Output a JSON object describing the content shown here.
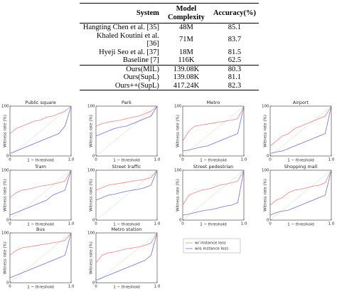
{
  "table": {
    "header": [
      "System",
      "Model Complexity",
      "Accuracy(%)"
    ],
    "groups": [
      [
        [
          "Hangting Chen et al. [35]",
          "48M",
          "85.1"
        ],
        [
          "Khaled Koutini et al. [36]",
          "71M",
          "83.7"
        ],
        [
          "Hyeji Seo et al. [37]",
          "18M",
          "81.5"
        ],
        [
          "Baseline [7]",
          "116K",
          "62.5"
        ]
      ],
      [
        [
          "Ours(MIL)",
          "139.08K",
          "80.3"
        ],
        [
          "Ours(SupL)",
          "139.08K",
          "81.1"
        ],
        [
          "Ours++(SupL)",
          "417.24K",
          "82.3"
        ]
      ]
    ]
  },
  "legend": {
    "entries": [
      {
        "name": "w/ instance loss",
        "color": "#f08080"
      },
      {
        "name": "w/o instance loss",
        "color": "#7070e0"
      }
    ]
  },
  "chart_data": [
    {
      "type": "line",
      "title": "Public square",
      "xlabel": "1 − threshold",
      "ylabel": "Witness rate (%)",
      "xlim": [
        0,
        1
      ],
      "ylim": [
        0,
        100
      ],
      "xticks": [
        0,
        {
          "value": 1,
          "label": "1.0"
        }
      ],
      "yticks": [
        0,
        100
      ],
      "x": [
        0,
        0.1,
        0.2,
        0.3,
        0.4,
        0.5,
        0.6,
        0.7,
        0.8,
        0.9,
        1
      ],
      "series": [
        {
          "color": "#f08080",
          "values": [
            45,
            55,
            60,
            65,
            70,
            72,
            78,
            80,
            85,
            90,
            100
          ]
        },
        {
          "color": "#7070e0",
          "values": [
            5,
            10,
            15,
            20,
            25,
            30,
            35,
            40,
            45,
            60,
            100
          ]
        }
      ]
    },
    {
      "type": "line",
      "title": "Park",
      "xlabel": "1 − threshold",
      "ylabel": "Witness rate (%)",
      "xlim": [
        0,
        1
      ],
      "ylim": [
        0,
        100
      ],
      "xticks": [
        0,
        {
          "value": 1,
          "label": "1.0"
        }
      ],
      "yticks": [
        0,
        100
      ],
      "x": [
        0,
        0.1,
        0.2,
        0.3,
        0.4,
        0.5,
        0.6,
        0.7,
        0.8,
        0.9,
        1
      ],
      "series": [
        {
          "color": "#f08080",
          "values": [
            60,
            65,
            68,
            70,
            72,
            75,
            78,
            80,
            85,
            90,
            100
          ]
        },
        {
          "color": "#7070e0",
          "values": [
            40,
            45,
            50,
            55,
            58,
            60,
            65,
            70,
            75,
            80,
            100
          ]
        }
      ]
    },
    {
      "type": "line",
      "title": "Metro",
      "xlabel": "1 − threshold",
      "ylabel": "Witness rate (%)",
      "xlim": [
        0,
        1
      ],
      "ylim": [
        0,
        100
      ],
      "xticks": [
        0,
        {
          "value": 1,
          "label": "1.0"
        }
      ],
      "yticks": [
        0,
        100
      ],
      "x": [
        0,
        0.1,
        0.2,
        0.3,
        0.4,
        0.5,
        0.6,
        0.7,
        0.8,
        0.9,
        1
      ],
      "series": [
        {
          "color": "#f08080",
          "values": [
            30,
            50,
            60,
            62,
            64,
            66,
            68,
            70,
            72,
            75,
            100
          ]
        },
        {
          "color": "#7070e0",
          "values": [
            10,
            12,
            15,
            18,
            20,
            25,
            30,
            35,
            40,
            45,
            100
          ]
        }
      ]
    },
    {
      "type": "line",
      "title": "Airport",
      "xlabel": "1 − threshold",
      "ylabel": "Witness rate (%)",
      "xlim": [
        0,
        1
      ],
      "ylim": [
        0,
        100
      ],
      "xticks": [
        0,
        {
          "value": 1,
          "label": "1.0"
        }
      ],
      "yticks": [
        0,
        100
      ],
      "x": [
        0,
        0.1,
        0.2,
        0.3,
        0.4,
        0.5,
        0.6,
        0.7,
        0.8,
        0.9,
        1
      ],
      "series": [
        {
          "color": "#f08080",
          "values": [
            20,
            30,
            40,
            45,
            55,
            60,
            65,
            70,
            75,
            80,
            100
          ]
        },
        {
          "color": "#7070e0",
          "values": [
            5,
            8,
            10,
            15,
            20,
            25,
            30,
            35,
            40,
            45,
            100
          ]
        }
      ]
    },
    {
      "type": "line",
      "title": "Tram",
      "xlabel": "1 − threshold",
      "ylabel": "Witness rate (%)",
      "xlim": [
        0,
        1
      ],
      "ylim": [
        0,
        100
      ],
      "xticks": [
        0,
        {
          "value": 1,
          "label": "1.0"
        }
      ],
      "yticks": [
        0,
        100
      ],
      "x": [
        0,
        0.1,
        0.2,
        0.3,
        0.4,
        0.5,
        0.6,
        0.7,
        0.8,
        0.9,
        1
      ],
      "series": [
        {
          "color": "#f08080",
          "values": [
            45,
            55,
            60,
            62,
            65,
            68,
            70,
            72,
            75,
            78,
            100
          ]
        },
        {
          "color": "#7070e0",
          "values": [
            10,
            15,
            20,
            25,
            30,
            35,
            40,
            50,
            55,
            60,
            100
          ]
        }
      ]
    },
    {
      "type": "line",
      "title": "Street traffic",
      "xlabel": "1 − threshold",
      "ylabel": "Witness rate (%)",
      "xlim": [
        0,
        1
      ],
      "ylim": [
        0,
        100
      ],
      "xticks": [
        0,
        {
          "value": 1,
          "label": "1.0"
        }
      ],
      "yticks": [
        0,
        100
      ],
      "x": [
        0,
        0.1,
        0.2,
        0.3,
        0.4,
        0.5,
        0.6,
        0.7,
        0.8,
        0.9,
        1
      ],
      "series": [
        {
          "color": "#f08080",
          "values": [
            60,
            65,
            70,
            72,
            74,
            76,
            78,
            80,
            82,
            85,
            100
          ]
        },
        {
          "color": "#7070e0",
          "values": [
            40,
            45,
            50,
            52,
            55,
            58,
            60,
            62,
            65,
            70,
            100
          ]
        }
      ]
    },
    {
      "type": "line",
      "title": "Street pedestrian",
      "xlabel": "1 − threshold",
      "ylabel": "Witness rate (%)",
      "xlim": [
        0,
        1
      ],
      "ylim": [
        0,
        100
      ],
      "xticks": [
        0,
        {
          "value": 1,
          "label": "1.0"
        }
      ],
      "yticks": [
        0,
        100
      ],
      "x": [
        0,
        0.1,
        0.2,
        0.3,
        0.4,
        0.5,
        0.6,
        0.7,
        0.8,
        0.9,
        1
      ],
      "series": [
        {
          "color": "#f08080",
          "values": [
            30,
            50,
            55,
            60,
            62,
            65,
            70,
            72,
            75,
            78,
            100
          ]
        },
        {
          "color": "#7070e0",
          "values": [
            10,
            12,
            15,
            18,
            20,
            22,
            25,
            28,
            30,
            35,
            100
          ]
        }
      ]
    },
    {
      "type": "line",
      "title": "Shopping mall",
      "xlabel": "1 − threshold",
      "ylabel": "Witness rate (%)",
      "xlim": [
        0,
        1
      ],
      "ylim": [
        0,
        100
      ],
      "xticks": [
        0,
        {
          "value": 1,
          "label": "1.0"
        }
      ],
      "yticks": [
        0,
        100
      ],
      "x": [
        0,
        0.1,
        0.2,
        0.3,
        0.4,
        0.5,
        0.6,
        0.7,
        0.8,
        0.9,
        1
      ],
      "series": [
        {
          "color": "#f08080",
          "values": [
            30,
            40,
            45,
            55,
            60,
            62,
            65,
            68,
            70,
            75,
            100
          ]
        },
        {
          "color": "#7070e0",
          "values": [
            10,
            15,
            18,
            20,
            25,
            30,
            35,
            40,
            45,
            50,
            100
          ]
        }
      ]
    },
    {
      "type": "line",
      "title": "Bus",
      "xlabel": "1 − threshold",
      "ylabel": "Witness rate (%)",
      "xlim": [
        0,
        1
      ],
      "ylim": [
        0,
        100
      ],
      "xticks": [
        0,
        {
          "value": 1,
          "label": "1.0"
        }
      ],
      "yticks": [
        0,
        100
      ],
      "x": [
        0,
        0.1,
        0.2,
        0.3,
        0.4,
        0.5,
        0.6,
        0.7,
        0.8,
        0.9,
        1
      ],
      "series": [
        {
          "color": "#f08080",
          "values": [
            55,
            65,
            70,
            72,
            74,
            76,
            78,
            80,
            82,
            85,
            100
          ]
        },
        {
          "color": "#7070e0",
          "values": [
            10,
            15,
            20,
            25,
            30,
            35,
            40,
            45,
            50,
            55,
            100
          ]
        }
      ]
    },
    {
      "type": "line",
      "title": "Metro station",
      "xlabel": "1 − threshold",
      "ylabel": "Witness rate (%)",
      "xlim": [
        0,
        1
      ],
      "ylim": [
        0,
        100
      ],
      "xticks": [
        0,
        {
          "value": 1,
          "label": "1.0"
        }
      ],
      "yticks": [
        0,
        100
      ],
      "x": [
        0,
        0.1,
        0.2,
        0.3,
        0.4,
        0.5,
        0.6,
        0.7,
        0.8,
        0.9,
        1
      ],
      "series": [
        {
          "color": "#f08080",
          "values": [
            40,
            55,
            60,
            62,
            65,
            68,
            70,
            72,
            75,
            80,
            100
          ]
        },
        {
          "color": "#7070e0",
          "values": [
            5,
            10,
            15,
            20,
            25,
            30,
            35,
            40,
            45,
            55,
            100
          ]
        }
      ]
    }
  ]
}
